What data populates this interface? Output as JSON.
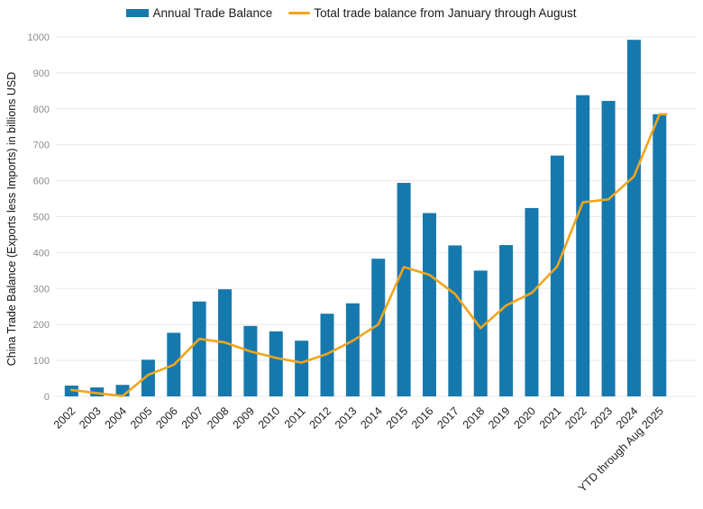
{
  "chart_data": {
    "type": "bar+line",
    "categories": [
      "2002",
      "2003",
      "2004",
      "2005",
      "2006",
      "2007",
      "2008",
      "2009",
      "2010",
      "2011",
      "2012",
      "2013",
      "2014",
      "2015",
      "2016",
      "2017",
      "2018",
      "2019",
      "2020",
      "2021",
      "2022",
      "2023",
      "2024",
      "YTD through Aug 2025"
    ],
    "series": [
      {
        "name": "Annual Trade Balance",
        "type": "bar",
        "color": "#1679AE",
        "values": [
          30,
          25,
          32,
          102,
          177,
          264,
          298,
          196,
          181,
          155,
          230,
          259,
          383,
          594,
          510,
          420,
          350,
          421,
          524,
          670,
          838,
          822,
          992,
          785
        ]
      },
      {
        "name": "Total trade balance from January through August",
        "type": "line",
        "color": "#F0A51C",
        "values": [
          18,
          9,
          1,
          60,
          88,
          160,
          150,
          125,
          107,
          94,
          118,
          155,
          200,
          360,
          338,
          285,
          190,
          253,
          288,
          362,
          540,
          548,
          612,
          785
        ]
      }
    ],
    "ylabel": "China Trade Balance (Exports less Imports) in billions USD",
    "xlabel": "",
    "ylim": [
      0,
      1000
    ],
    "ytick_step": 100,
    "grid": "horizontal",
    "legend_position": "top-center",
    "colors": {
      "background": "#FFFFFF",
      "gridline": "#E8E8E8",
      "ytick_text": "#8C8C8C",
      "xtick_text": "#1F1F1F",
      "axis_title_text": "#111111",
      "legend_text": "#1A1A1A"
    }
  }
}
